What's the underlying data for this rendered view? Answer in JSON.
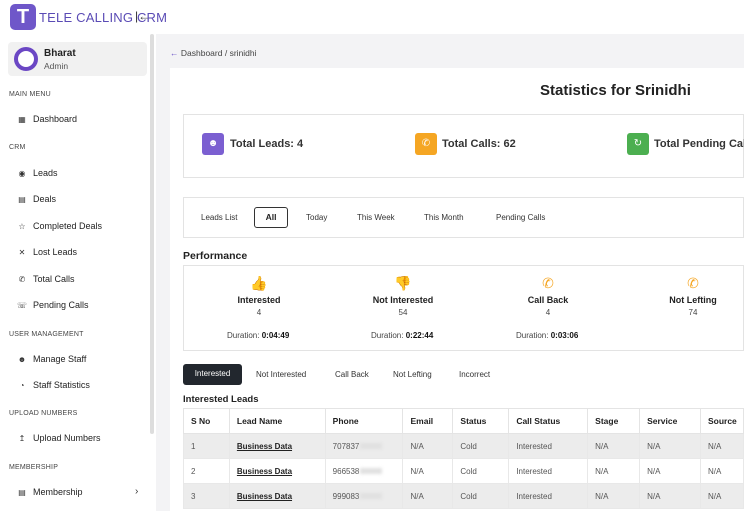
{
  "app": {
    "logo_letter": "T",
    "name": "TELE CALLING CRM",
    "collapse_icon": "collapse-icon"
  },
  "user": {
    "name": "Bharat",
    "role": "Admin"
  },
  "sidebar": {
    "main_menu": "MAIN MENU",
    "dashboard": "Dashboard",
    "crm": "CRM",
    "crm_items": [
      "Leads",
      "Deals",
      "Completed Deals",
      "Lost Leads",
      "Total Calls",
      "Pending Calls"
    ],
    "user_management": "USER MANAGEMENT",
    "um_items": [
      "Manage Staff",
      "Staff Statistics"
    ],
    "upload_numbers_section": "UPLOAD NUMBERS",
    "upload_numbers": "Upload Numbers",
    "membership_section": "MEMBERSHIP",
    "membership": "Membership"
  },
  "breadcrumb": {
    "back": "←",
    "home": "Dashboard",
    "sep": "/",
    "current": "srinidhi"
  },
  "page_title": "Statistics for Srinidhi",
  "stats": [
    {
      "label": "Total Leads: 4",
      "color": "#7b5fd1",
      "icon": "users-icon"
    },
    {
      "label": "Total Calls: 62",
      "color": "#f5a623",
      "icon": "phone-icon"
    },
    {
      "label": "Total Pending Calls",
      "color": "#4caf50",
      "icon": "refresh-icon"
    }
  ],
  "period_tabs": [
    "Leads List",
    "All",
    "Today",
    "This Week",
    "This Month",
    "Pending Calls"
  ],
  "active_period": "All",
  "performance": {
    "title": "Performance",
    "items": [
      {
        "name": "Interested",
        "count": "4",
        "duration_label": "Duration:",
        "duration": "0:04:49",
        "color": "#3aa54a"
      },
      {
        "name": "Not Interested",
        "count": "54",
        "duration_label": "Duration:",
        "duration": "0:22:44",
        "color": "#e02b2b"
      },
      {
        "name": "Call Back",
        "count": "4",
        "duration_label": "Duration:",
        "duration": "0:03:06",
        "color": "#f5a623"
      },
      {
        "name": "Not Lefting",
        "count": "74",
        "color": "#f5a623"
      }
    ]
  },
  "filter_tabs": [
    "Interested",
    "Not Interested",
    "Call Back",
    "Not Lefting",
    "Incorrect"
  ],
  "active_filter": "Interested",
  "table": {
    "title": "Interested Leads",
    "columns": [
      "S No",
      "Lead Name",
      "Phone",
      "Email",
      "Status",
      "Call Status",
      "Stage",
      "Service",
      "Source"
    ],
    "rows": [
      [
        "1",
        "Business Data",
        "707837",
        "N/A",
        "Cold",
        "Interested",
        "N/A",
        "N/A",
        "N/A"
      ],
      [
        "2",
        "Business Data",
        "966538",
        "N/A",
        "Cold",
        "Interested",
        "N/A",
        "N/A",
        "N/A"
      ],
      [
        "3",
        "Business Data",
        "999083",
        "N/A",
        "Cold",
        "Interested",
        "N/A",
        "N/A",
        "N/A"
      ]
    ]
  }
}
